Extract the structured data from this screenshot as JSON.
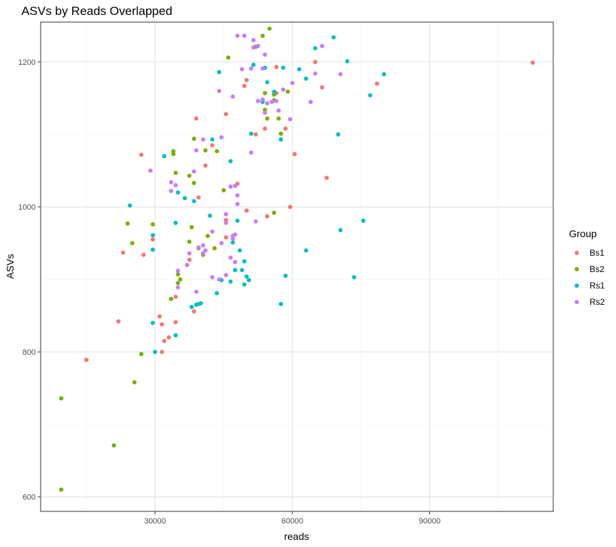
{
  "chart_data": {
    "type": "scatter",
    "title": "ASVs by Reads Overlapped",
    "xlabel": "reads",
    "ylabel": "ASVs",
    "xlim": [
      5000,
      117000
    ],
    "ylim": [
      580,
      1255
    ],
    "x_ticks": [
      30000,
      60000,
      90000
    ],
    "x_tick_labels": [
      "30000",
      "60000",
      "90000"
    ],
    "x_minor_ticks": [
      15000,
      45000,
      75000,
      105000
    ],
    "y_ticks": [
      600,
      800,
      1000,
      1200
    ],
    "y_tick_labels": [
      "600",
      "800",
      "1000",
      "1200"
    ],
    "y_minor_ticks": [
      700,
      900,
      1100
    ],
    "grid": true,
    "legend": {
      "title": "Group",
      "position": "right"
    },
    "series": [
      {
        "name": "Bs1",
        "color": "#F8766D",
        "points": [
          [
            112500,
            1199
          ],
          [
            78500,
            1170
          ],
          [
            66500,
            1165
          ],
          [
            65000,
            1200
          ],
          [
            67500,
            1040
          ],
          [
            60500,
            1073
          ],
          [
            59500,
            1000
          ],
          [
            58500,
            1108
          ],
          [
            56500,
            1157
          ],
          [
            56500,
            1193
          ],
          [
            54000,
            1108
          ],
          [
            54500,
            987
          ],
          [
            52000,
            1100
          ],
          [
            50000,
            1175
          ],
          [
            49500,
            1167
          ],
          [
            50000,
            995
          ],
          [
            48000,
            1032
          ],
          [
            45500,
            1128
          ],
          [
            45500,
            958
          ],
          [
            45500,
            982
          ],
          [
            42500,
            1085
          ],
          [
            41000,
            1057
          ],
          [
            39000,
            1122
          ],
          [
            39500,
            1013
          ],
          [
            37500,
            927
          ],
          [
            38500,
            856
          ],
          [
            34500,
            876
          ],
          [
            34500,
            841
          ],
          [
            33000,
            820
          ],
          [
            32000,
            815
          ],
          [
            31500,
            838
          ],
          [
            31000,
            849
          ],
          [
            31500,
            800
          ],
          [
            29500,
            955
          ],
          [
            27500,
            934
          ],
          [
            27000,
            1072
          ],
          [
            23000,
            937
          ],
          [
            22000,
            842
          ],
          [
            15000,
            789
          ]
        ]
      },
      {
        "name": "Bs2",
        "color": "#7CAE00",
        "points": [
          [
            55000,
            1246
          ],
          [
            53500,
            1236
          ],
          [
            52000,
            1221
          ],
          [
            54000,
            1157
          ],
          [
            56000,
            1155
          ],
          [
            56000,
            1147
          ],
          [
            59000,
            1159
          ],
          [
            54000,
            1134
          ],
          [
            54500,
            1122
          ],
          [
            57000,
            1122
          ],
          [
            57500,
            1101
          ],
          [
            46000,
            1206
          ],
          [
            43500,
            1077
          ],
          [
            38500,
            1094
          ],
          [
            38500,
            1033
          ],
          [
            37500,
            1043
          ],
          [
            41000,
            1078
          ],
          [
            34000,
            1077
          ],
          [
            34000,
            1073
          ],
          [
            34500,
            1047
          ],
          [
            45000,
            1023
          ],
          [
            56000,
            992
          ],
          [
            38000,
            972
          ],
          [
            43000,
            943
          ],
          [
            41500,
            960
          ],
          [
            37500,
            952
          ],
          [
            39500,
            943
          ],
          [
            40500,
            934
          ],
          [
            35500,
            900
          ],
          [
            35000,
            907
          ],
          [
            35000,
            895
          ],
          [
            33500,
            873
          ],
          [
            29500,
            976
          ],
          [
            24000,
            977
          ],
          [
            25000,
            950
          ],
          [
            27000,
            797
          ],
          [
            25500,
            758
          ],
          [
            21000,
            671
          ],
          [
            9500,
            736
          ],
          [
            9500,
            610
          ]
        ]
      },
      {
        "name": "Rs1",
        "color": "#00BFC4",
        "points": [
          [
            69000,
            1234
          ],
          [
            65000,
            1219
          ],
          [
            72000,
            1201
          ],
          [
            80000,
            1183
          ],
          [
            77000,
            1154
          ],
          [
            61500,
            1190
          ],
          [
            63000,
            1177
          ],
          [
            58000,
            1192
          ],
          [
            57500,
            1093
          ],
          [
            51500,
            1196
          ],
          [
            54000,
            1192
          ],
          [
            54500,
            1172
          ],
          [
            56000,
            1159
          ],
          [
            53500,
            1145
          ],
          [
            51000,
            1101
          ],
          [
            44000,
            1186
          ],
          [
            42500,
            1093
          ],
          [
            46500,
            1063
          ],
          [
            32000,
            1070
          ],
          [
            70000,
            1100
          ],
          [
            24500,
            1002
          ],
          [
            29500,
            961
          ],
          [
            29500,
            941
          ],
          [
            34500,
            978
          ],
          [
            35000,
            1020
          ],
          [
            36500,
            1012
          ],
          [
            38500,
            1008
          ],
          [
            42000,
            988
          ],
          [
            47000,
            951
          ],
          [
            48000,
            981
          ],
          [
            48500,
            940
          ],
          [
            47500,
            913
          ],
          [
            49000,
            913
          ],
          [
            49500,
            925
          ],
          [
            50000,
            904
          ],
          [
            50500,
            899
          ],
          [
            49500,
            893
          ],
          [
            46500,
            897
          ],
          [
            44500,
            899
          ],
          [
            43500,
            881
          ],
          [
            63000,
            940
          ],
          [
            70500,
            968
          ],
          [
            75500,
            981
          ],
          [
            73500,
            903
          ],
          [
            58500,
            905
          ],
          [
            57500,
            866
          ],
          [
            40000,
            867
          ],
          [
            39500,
            866
          ],
          [
            39000,
            865
          ],
          [
            38000,
            862
          ],
          [
            34500,
            823
          ],
          [
            30000,
            800
          ],
          [
            29500,
            840
          ]
        ]
      },
      {
        "name": "Rs2",
        "color": "#C77CFF",
        "points": [
          [
            48000,
            1236
          ],
          [
            49500,
            1236
          ],
          [
            51500,
            1230
          ],
          [
            51500,
            1220
          ],
          [
            52500,
            1222
          ],
          [
            54000,
            1210
          ],
          [
            49000,
            1190
          ],
          [
            53500,
            1191
          ],
          [
            51000,
            1191
          ],
          [
            66500,
            1222
          ],
          [
            70500,
            1183
          ],
          [
            65000,
            1184
          ],
          [
            60000,
            1171
          ],
          [
            58000,
            1162
          ],
          [
            64000,
            1145
          ],
          [
            56500,
            1146
          ],
          [
            53500,
            1148
          ],
          [
            52500,
            1146
          ],
          [
            55500,
            1145
          ],
          [
            54500,
            1143
          ],
          [
            54000,
            1130
          ],
          [
            57000,
            1133
          ],
          [
            59500,
            1121
          ],
          [
            47000,
            1152
          ],
          [
            44000,
            1160
          ],
          [
            44500,
            1096
          ],
          [
            40500,
            1093
          ],
          [
            39000,
            1078
          ],
          [
            29000,
            1050
          ],
          [
            33500,
            1034
          ],
          [
            34500,
            1030
          ],
          [
            33500,
            1022
          ],
          [
            38500,
            1049
          ],
          [
            47500,
            1029
          ],
          [
            46500,
            1028
          ],
          [
            48000,
            1016
          ],
          [
            48000,
            1004
          ],
          [
            51000,
            1075
          ],
          [
            52000,
            980
          ],
          [
            45500,
            990
          ],
          [
            45500,
            978
          ],
          [
            47000,
            960
          ],
          [
            47500,
            962
          ],
          [
            47000,
            956
          ],
          [
            42500,
            966
          ],
          [
            44500,
            950
          ],
          [
            40500,
            947
          ],
          [
            39500,
            944
          ],
          [
            41000,
            940
          ],
          [
            40500,
            936
          ],
          [
            37500,
            936
          ],
          [
            37000,
            920
          ],
          [
            35000,
            912
          ],
          [
            35000,
            889
          ],
          [
            39000,
            883
          ],
          [
            46500,
            930
          ],
          [
            47500,
            924
          ],
          [
            45500,
            906
          ],
          [
            44000,
            900
          ],
          [
            42500,
            903
          ]
        ]
      }
    ]
  }
}
